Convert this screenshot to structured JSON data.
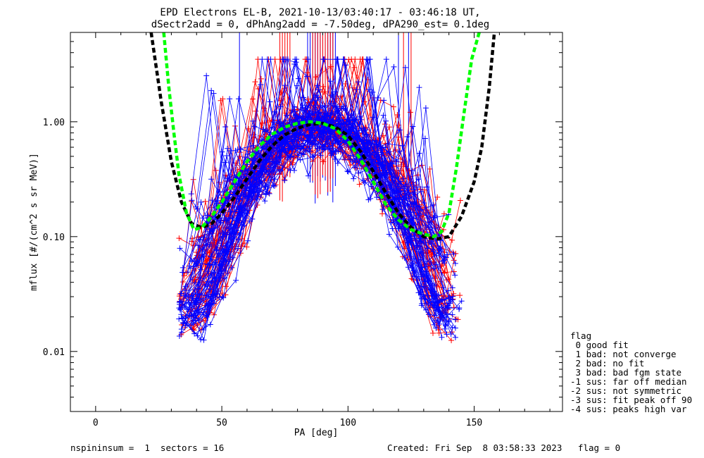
{
  "chart_data": {
    "type": "line",
    "title": "EPD Electrons EL-B, 2021-10-13/03:40:17 - 03:46:18 UT,",
    "subtitle": "dSectr2add = 0, dPhAng2add = -7.50deg, dPA290_est=   0.1deg",
    "xlabel": "PA [deg]",
    "ylabel": "mflux [#/(cm^2 s sr MeV)]",
    "xlim": [
      -10,
      185
    ],
    "ylim": [
      0.003,
      6
    ],
    "yscale": "log",
    "xticks": [
      0,
      50,
      100,
      150
    ],
    "xtick_labels": [
      "0",
      "50",
      "100",
      "150"
    ],
    "yticks": [
      0.01,
      0.1,
      1.0
    ],
    "ytick_labels": [
      "0.01",
      "0.10",
      "1.00"
    ],
    "grid": false,
    "series_colors": {
      "red": "#ff0000",
      "blue": "#0000ff",
      "fit_black": "#000000",
      "fit_green": "#00ff00"
    },
    "fit_curves": [
      {
        "style": "dashed",
        "color": "#000000",
        "x": [
          22,
          26,
          30,
          34,
          38,
          42,
          46,
          50,
          55,
          60,
          65,
          70,
          75,
          80,
          85,
          90,
          95,
          100,
          105,
          110,
          115,
          120,
          125,
          130,
          135,
          140,
          145,
          150,
          153,
          156,
          158
        ],
        "y": [
          6.0,
          1.5,
          0.45,
          0.2,
          0.13,
          0.12,
          0.13,
          0.16,
          0.22,
          0.32,
          0.46,
          0.62,
          0.77,
          0.88,
          0.95,
          0.97,
          0.9,
          0.76,
          0.55,
          0.37,
          0.24,
          0.16,
          0.12,
          0.1,
          0.095,
          0.1,
          0.15,
          0.3,
          0.6,
          2.0,
          6.0
        ]
      },
      {
        "style": "dashed",
        "color": "#00ff00",
        "x": [
          27,
          29,
          31,
          33,
          36,
          39,
          42,
          46,
          50,
          55,
          60,
          65,
          70,
          75,
          80,
          85,
          90,
          95,
          100,
          105,
          110,
          115,
          120,
          125,
          130,
          134,
          137,
          140,
          143,
          146,
          149,
          152
        ],
        "y": [
          6.0,
          2.0,
          0.8,
          0.35,
          0.16,
          0.115,
          0.12,
          0.15,
          0.2,
          0.3,
          0.45,
          0.62,
          0.78,
          0.9,
          0.97,
          1.0,
          0.97,
          0.87,
          0.68,
          0.47,
          0.3,
          0.19,
          0.14,
          0.115,
          0.105,
          0.1,
          0.11,
          0.16,
          0.4,
          1.2,
          3.5,
          6.0
        ]
      }
    ],
    "profile_model": {
      "peak_x": 89,
      "peak_y": 0.95,
      "sigma": 24,
      "left_x_range": [
        33,
        62
      ],
      "right_x_range": [
        115,
        146
      ],
      "red_count": 45,
      "blue_count": 60
    },
    "spikes": {
      "blue_x": [
        57,
        120,
        124,
        84,
        85,
        86,
        87,
        88,
        89,
        90,
        91,
        92,
        93,
        94,
        95
      ],
      "red_x": [
        73,
        74,
        75,
        76,
        77,
        122,
        125,
        86,
        87,
        88,
        89,
        90,
        91,
        92,
        93,
        94
      ]
    }
  },
  "legend": {
    "title": "flag",
    "items": [
      " 0 good fit",
      " 1 bad: not converge",
      " 2 bad: no fit",
      " 3 bad: bad fgm state",
      "-1 sus: far off median",
      "-2 sus: not symmetric",
      "-3 sus: fit peak off 90",
      "-4 sus: peaks high var"
    ]
  },
  "footer": {
    "left": "nspininsum =  1  sectors = 16",
    "right": "Created: Fri Sep  8 03:58:33 2023   flag = 0"
  }
}
